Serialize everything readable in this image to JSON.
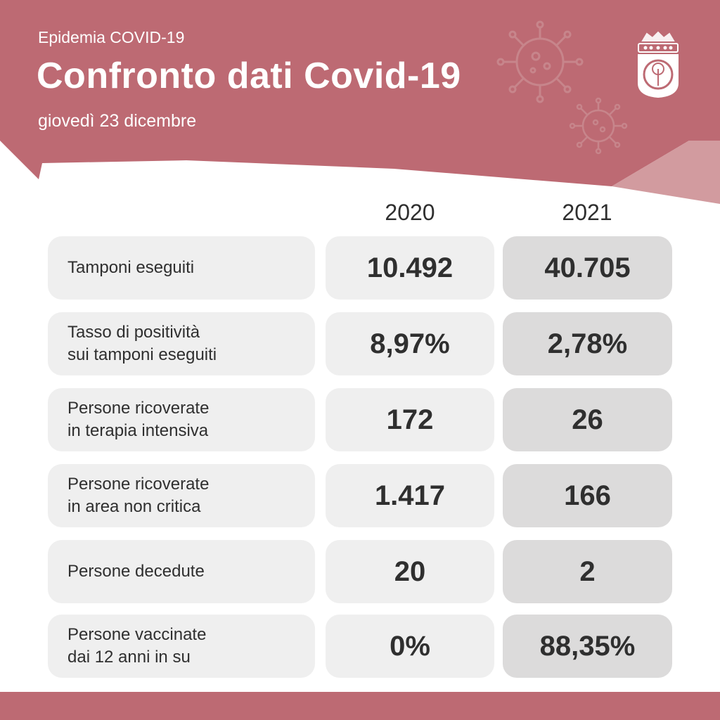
{
  "header": {
    "kicker": "Epidemia COVID-19",
    "title": "Confronto dati Covid-19",
    "date": "giovedì 23 dicembre"
  },
  "colors": {
    "brand": "#bd6a73",
    "brand_light": "#d29b9f",
    "cell_light": "#efefef",
    "cell_dark": "#dcdbdb",
    "text": "#2f2f2f"
  },
  "icons": [
    "virus-icon",
    "municipal-crest-icon"
  ],
  "table": {
    "columns": [
      "2020",
      "2021"
    ],
    "rows": [
      {
        "label_lines": [
          "Tamponi eseguiti"
        ],
        "v2020": "10.492",
        "v2021": "40.705"
      },
      {
        "label_lines": [
          "Tasso di positività",
          "sui tamponi eseguiti"
        ],
        "v2020": "8,97%",
        "v2021": "2,78%"
      },
      {
        "label_lines": [
          "Persone ricoverate",
          "in terapia intensiva"
        ],
        "v2020": "172",
        "v2021": "26"
      },
      {
        "label_lines": [
          "Persone ricoverate",
          "in area non critica"
        ],
        "v2020": "1.417",
        "v2021": "166"
      },
      {
        "label_lines": [
          "Persone decedute"
        ],
        "v2020": "20",
        "v2021": "2"
      },
      {
        "label_lines": [
          "Persone vaccinate",
          "dai 12 anni in su"
        ],
        "v2020": "0%",
        "v2021": "88,35%"
      }
    ]
  }
}
